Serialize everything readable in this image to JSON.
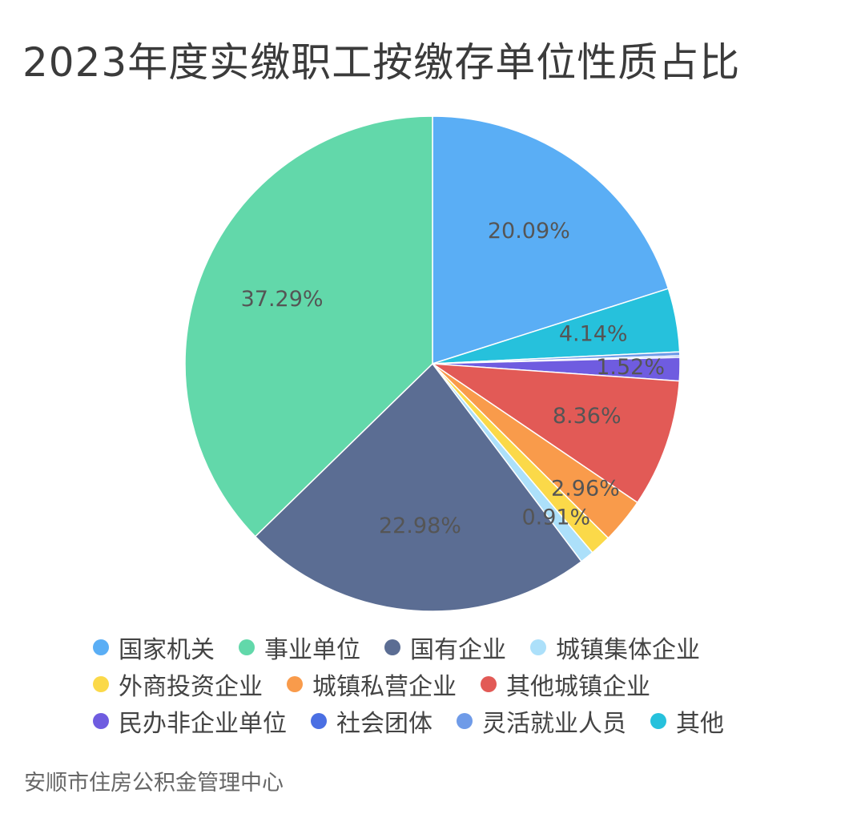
{
  "chart_data": {
    "type": "pie",
    "title": "2023年度实缴职工按缴存单位性质占比",
    "source": "安顺市住房公积金管理中心",
    "legend_position": "bottom",
    "slices": [
      {
        "name": "国家机关",
        "value": 20.09,
        "label": "20.09%",
        "color": "#5aaef5"
      },
      {
        "name": "其他",
        "value": 4.14,
        "label": "4.14%",
        "color": "#26c1dc"
      },
      {
        "name": "灵活就业人员",
        "value": 0.26,
        "label": "",
        "color": "#6f9be8"
      },
      {
        "name": "社会团体",
        "value": 0.1,
        "label": "",
        "color": "#4a6fe3"
      },
      {
        "name": "民办非企业单位",
        "value": 1.52,
        "label": "1.52%",
        "color": "#6f5ce0"
      },
      {
        "name": "其他城镇企业",
        "value": 8.36,
        "label": "8.36%",
        "color": "#e25a56"
      },
      {
        "name": "城镇私营企业",
        "value": 2.96,
        "label": "2.96%",
        "color": "#f99b4b"
      },
      {
        "name": "外商投资企业",
        "value": 1.38,
        "label": "",
        "color": "#fbd949"
      },
      {
        "name": "城镇集体企业",
        "value": 0.91,
        "label": "0.91%",
        "color": "#ace0fa"
      },
      {
        "name": "国有企业",
        "value": 22.98,
        "label": "22.98%",
        "color": "#5b6d93"
      },
      {
        "name": "事业单位",
        "value": 37.29,
        "label": "37.29%",
        "color": "#62d8aa"
      }
    ],
    "legend": [
      {
        "name": "国家机关",
        "color": "#5aaef5"
      },
      {
        "name": "事业单位",
        "color": "#62d8aa"
      },
      {
        "name": "国有企业",
        "color": "#5b6d93"
      },
      {
        "name": "城镇集体企业",
        "color": "#ace0fa"
      },
      {
        "name": "外商投资企业",
        "color": "#fbd949"
      },
      {
        "name": "城镇私营企业",
        "color": "#f99b4b"
      },
      {
        "name": "其他城镇企业",
        "color": "#e25a56"
      },
      {
        "name": "民办非企业单位",
        "color": "#6f5ce0"
      },
      {
        "name": "社会团体",
        "color": "#4a6fe3"
      },
      {
        "name": "灵活就业人员",
        "color": "#6f9be8"
      },
      {
        "name": "其他",
        "color": "#26c1dc"
      }
    ]
  }
}
